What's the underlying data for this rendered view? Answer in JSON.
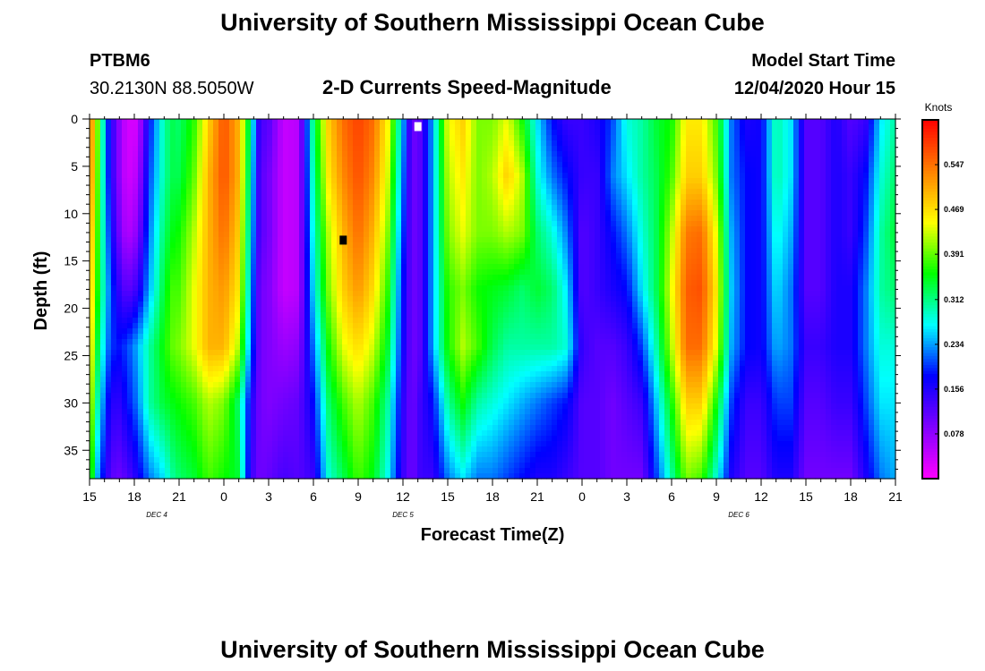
{
  "page": {
    "title_top": "University of Southern Mississippi Ocean Cube",
    "title_bottom": "University of Southern Mississippi Ocean Cube",
    "station_id": "PTBM6",
    "station_coords": "30.2130N 88.5050W",
    "model_label": "Model Start Time",
    "model_time": "12/04/2020 Hour 15"
  },
  "chart_data": {
    "type": "heatmap",
    "title": "2-D Currents Speed-Magnitude",
    "xlabel": "Forecast Time(Z)",
    "ylabel": "Depth (ft)",
    "x_range_hours": [
      0,
      54
    ],
    "y_range_ft": [
      0,
      38
    ],
    "x_tick_labels": [
      "15",
      "18",
      "21",
      "0",
      "3",
      "6",
      "9",
      "12",
      "15",
      "18",
      "21",
      "0",
      "3",
      "6",
      "9",
      "12",
      "15",
      "18",
      "21"
    ],
    "day_labels": [
      {
        "text": "DEC 4",
        "hour": 4.5
      },
      {
        "text": "DEC 5",
        "hour": 21
      },
      {
        "text": "DEC 6",
        "hour": 43.5
      }
    ],
    "y_ticks": [
      0,
      5,
      10,
      15,
      20,
      25,
      30,
      35
    ],
    "y_tick_labels": [
      "0",
      "5",
      "10",
      "15",
      "20",
      "25",
      "30",
      "35"
    ],
    "colorbar": {
      "unit": "Knots",
      "min": 0.0,
      "max": 0.625,
      "tick_values": [
        0.078,
        0.156,
        0.234,
        0.312,
        0.391,
        0.469,
        0.547
      ],
      "tick_labels": [
        "0.078",
        "0.156",
        "0.234",
        "0.312",
        "0.391",
        "0.469",
        "0.547"
      ],
      "colors": [
        "#ff00ff",
        "#8000ff",
        "#0000ff",
        "#00ffff",
        "#00ff00",
        "#ffff00",
        "#ff8000",
        "#ff0000"
      ]
    },
    "speed_profile": [
      {
        "h": 0.0,
        "s": [
          0.56,
          0.55,
          0.52,
          0.5,
          0.48,
          0.45,
          0.4
        ]
      },
      {
        "h": 0.6,
        "s": [
          0.38,
          0.37,
          0.36,
          0.35,
          0.32,
          0.28,
          0.22
        ]
      },
      {
        "h": 1.2,
        "s": [
          0.2,
          0.2,
          0.22,
          0.24,
          0.22,
          0.18,
          0.14
        ]
      },
      {
        "h": 1.8,
        "s": [
          0.1,
          0.1,
          0.12,
          0.16,
          0.18,
          0.14,
          0.1
        ]
      },
      {
        "h": 2.5,
        "s": [
          0.03,
          0.03,
          0.05,
          0.11,
          0.2,
          0.18,
          0.12
        ]
      },
      {
        "h": 3.2,
        "s": [
          0.03,
          0.05,
          0.08,
          0.14,
          0.24,
          0.22,
          0.16
        ]
      },
      {
        "h": 4.0,
        "s": [
          0.18,
          0.2,
          0.22,
          0.24,
          0.3,
          0.3,
          0.22
        ]
      },
      {
        "h": 5.0,
        "s": [
          0.3,
          0.3,
          0.32,
          0.34,
          0.36,
          0.34,
          0.26
        ]
      },
      {
        "h": 5.5,
        "s": [
          0.33,
          0.33,
          0.35,
          0.38,
          0.39,
          0.35,
          0.3
        ]
      },
      {
        "h": 6.0,
        "s": [
          0.32,
          0.33,
          0.36,
          0.38,
          0.4,
          0.36,
          0.32
        ]
      },
      {
        "h": 7.0,
        "s": [
          0.37,
          0.39,
          0.42,
          0.44,
          0.44,
          0.38,
          0.34
        ]
      },
      {
        "h": 8.0,
        "s": [
          0.48,
          0.5,
          0.5,
          0.5,
          0.5,
          0.42,
          0.38
        ]
      },
      {
        "h": 9.0,
        "s": [
          0.57,
          0.57,
          0.55,
          0.52,
          0.5,
          0.4,
          0.36
        ]
      },
      {
        "h": 10.0,
        "s": [
          0.5,
          0.5,
          0.48,
          0.46,
          0.42,
          0.32,
          0.34
        ]
      },
      {
        "h": 10.8,
        "s": [
          0.3,
          0.28,
          0.26,
          0.24,
          0.22,
          0.16,
          0.14
        ]
      },
      {
        "h": 11.4,
        "s": [
          0.13,
          0.12,
          0.12,
          0.1,
          0.1,
          0.1,
          0.1
        ]
      },
      {
        "h": 12.0,
        "s": [
          0.12,
          0.1,
          0.1,
          0.09,
          0.09,
          0.09,
          0.11
        ]
      },
      {
        "h": 13.0,
        "s": [
          0.04,
          0.04,
          0.04,
          0.04,
          0.07,
          0.1,
          0.13
        ]
      },
      {
        "h": 14.0,
        "s": [
          0.05,
          0.05,
          0.05,
          0.05,
          0.08,
          0.11,
          0.12
        ]
      },
      {
        "h": 15.0,
        "s": [
          0.32,
          0.3,
          0.28,
          0.26,
          0.22,
          0.18,
          0.14
        ]
      },
      {
        "h": 16.0,
        "s": [
          0.48,
          0.46,
          0.42,
          0.4,
          0.36,
          0.32,
          0.28
        ]
      },
      {
        "h": 17.0,
        "s": [
          0.55,
          0.53,
          0.5,
          0.48,
          0.44,
          0.38,
          0.33
        ]
      },
      {
        "h": 18.0,
        "s": [
          0.58,
          0.57,
          0.55,
          0.52,
          0.47,
          0.42,
          0.38
        ]
      },
      {
        "h": 19.0,
        "s": [
          0.55,
          0.53,
          0.5,
          0.47,
          0.43,
          0.38,
          0.35
        ]
      },
      {
        "h": 20.0,
        "s": [
          0.45,
          0.43,
          0.4,
          0.37,
          0.34,
          0.3,
          0.27
        ]
      },
      {
        "h": 21.0,
        "s": [
          0.24,
          0.22,
          0.2,
          0.18,
          0.17,
          0.15,
          0.14
        ]
      },
      {
        "h": 21.6,
        "s": [
          0.1,
          0.1,
          0.1,
          0.1,
          0.1,
          0.1,
          0.1
        ]
      },
      {
        "h": 22.2,
        "s": [
          0.12,
          0.12,
          0.12,
          0.12,
          0.12,
          0.14,
          0.14
        ]
      },
      {
        "h": 23.0,
        "s": [
          0.24,
          0.24,
          0.24,
          0.24,
          0.24,
          0.18,
          0.14
        ]
      },
      {
        "h": 24.0,
        "s": [
          0.44,
          0.42,
          0.4,
          0.37,
          0.36,
          0.3,
          0.22
        ]
      },
      {
        "h": 25.0,
        "s": [
          0.48,
          0.46,
          0.44,
          0.4,
          0.42,
          0.36,
          0.26
        ]
      },
      {
        "h": 26.0,
        "s": [
          0.4,
          0.4,
          0.4,
          0.36,
          0.38,
          0.3,
          0.22
        ]
      },
      {
        "h": 27.0,
        "s": [
          0.4,
          0.42,
          0.4,
          0.35,
          0.33,
          0.28,
          0.22
        ]
      },
      {
        "h": 28.0,
        "s": [
          0.44,
          0.48,
          0.42,
          0.34,
          0.3,
          0.26,
          0.2
        ]
      },
      {
        "h": 29.0,
        "s": [
          0.36,
          0.42,
          0.4,
          0.32,
          0.3,
          0.24,
          0.18
        ]
      },
      {
        "h": 30.0,
        "s": [
          0.26,
          0.28,
          0.32,
          0.34,
          0.3,
          0.22,
          0.16
        ]
      },
      {
        "h": 31.0,
        "s": [
          0.18,
          0.22,
          0.28,
          0.32,
          0.3,
          0.2,
          0.16
        ]
      },
      {
        "h": 32.0,
        "s": [
          0.14,
          0.18,
          0.22,
          0.26,
          0.28,
          0.18,
          0.14
        ]
      },
      {
        "h": 33.0,
        "s": [
          0.14,
          0.14,
          0.12,
          0.12,
          0.14,
          0.12,
          0.12
        ]
      },
      {
        "h": 34.0,
        "s": [
          0.16,
          0.14,
          0.14,
          0.14,
          0.12,
          0.12,
          0.12
        ]
      },
      {
        "h": 35.0,
        "s": [
          0.2,
          0.22,
          0.18,
          0.16,
          0.12,
          0.1,
          0.1
        ]
      },
      {
        "h": 36.0,
        "s": [
          0.28,
          0.26,
          0.22,
          0.18,
          0.14,
          0.12,
          0.1
        ]
      },
      {
        "h": 37.0,
        "s": [
          0.3,
          0.3,
          0.28,
          0.26,
          0.2,
          0.14,
          0.1
        ]
      },
      {
        "h": 38.0,
        "s": [
          0.34,
          0.33,
          0.33,
          0.33,
          0.3,
          0.25,
          0.2
        ]
      },
      {
        "h": 39.0,
        "s": [
          0.36,
          0.38,
          0.42,
          0.44,
          0.42,
          0.36,
          0.3
        ]
      },
      {
        "h": 40.0,
        "s": [
          0.46,
          0.48,
          0.54,
          0.56,
          0.55,
          0.48,
          0.4
        ]
      },
      {
        "h": 41.0,
        "s": [
          0.46,
          0.48,
          0.55,
          0.57,
          0.55,
          0.48,
          0.38
        ]
      },
      {
        "h": 42.0,
        "s": [
          0.38,
          0.4,
          0.44,
          0.46,
          0.44,
          0.36,
          0.28
        ]
      },
      {
        "h": 43.0,
        "s": [
          0.22,
          0.22,
          0.24,
          0.25,
          0.24,
          0.2,
          0.16
        ]
      },
      {
        "h": 44.0,
        "s": [
          0.16,
          0.18,
          0.18,
          0.18,
          0.18,
          0.14,
          0.12
        ]
      },
      {
        "h": 45.0,
        "s": [
          0.17,
          0.17,
          0.17,
          0.17,
          0.17,
          0.14,
          0.12
        ]
      },
      {
        "h": 46.0,
        "s": [
          0.3,
          0.3,
          0.28,
          0.26,
          0.24,
          0.2,
          0.16
        ]
      },
      {
        "h": 47.0,
        "s": [
          0.26,
          0.26,
          0.24,
          0.22,
          0.22,
          0.2,
          0.16
        ]
      },
      {
        "h": 48.0,
        "s": [
          0.12,
          0.12,
          0.12,
          0.12,
          0.14,
          0.12,
          0.1
        ]
      },
      {
        "h": 49.0,
        "s": [
          0.12,
          0.12,
          0.12,
          0.12,
          0.14,
          0.12,
          0.1
        ]
      },
      {
        "h": 50.0,
        "s": [
          0.16,
          0.16,
          0.16,
          0.16,
          0.16,
          0.14,
          0.1
        ]
      },
      {
        "h": 51.0,
        "s": [
          0.12,
          0.14,
          0.14,
          0.16,
          0.16,
          0.14,
          0.1
        ]
      },
      {
        "h": 52.0,
        "s": [
          0.14,
          0.18,
          0.2,
          0.22,
          0.22,
          0.2,
          0.16
        ]
      },
      {
        "h": 53.0,
        "s": [
          0.26,
          0.28,
          0.3,
          0.3,
          0.28,
          0.26,
          0.22
        ]
      },
      {
        "h": 54.0,
        "s": [
          0.3,
          0.32,
          0.34,
          0.32,
          0.28,
          0.26,
          0.24
        ]
      }
    ],
    "profile_depths_ft": [
      0,
      6,
      12,
      18,
      24,
      30,
      38
    ],
    "markers": [
      {
        "name": "marker-white",
        "hour": 22,
        "depth": 0.8,
        "color": "#ffffff"
      },
      {
        "name": "marker-black",
        "hour": 17,
        "depth": 12.8,
        "color": "#000000"
      }
    ]
  }
}
